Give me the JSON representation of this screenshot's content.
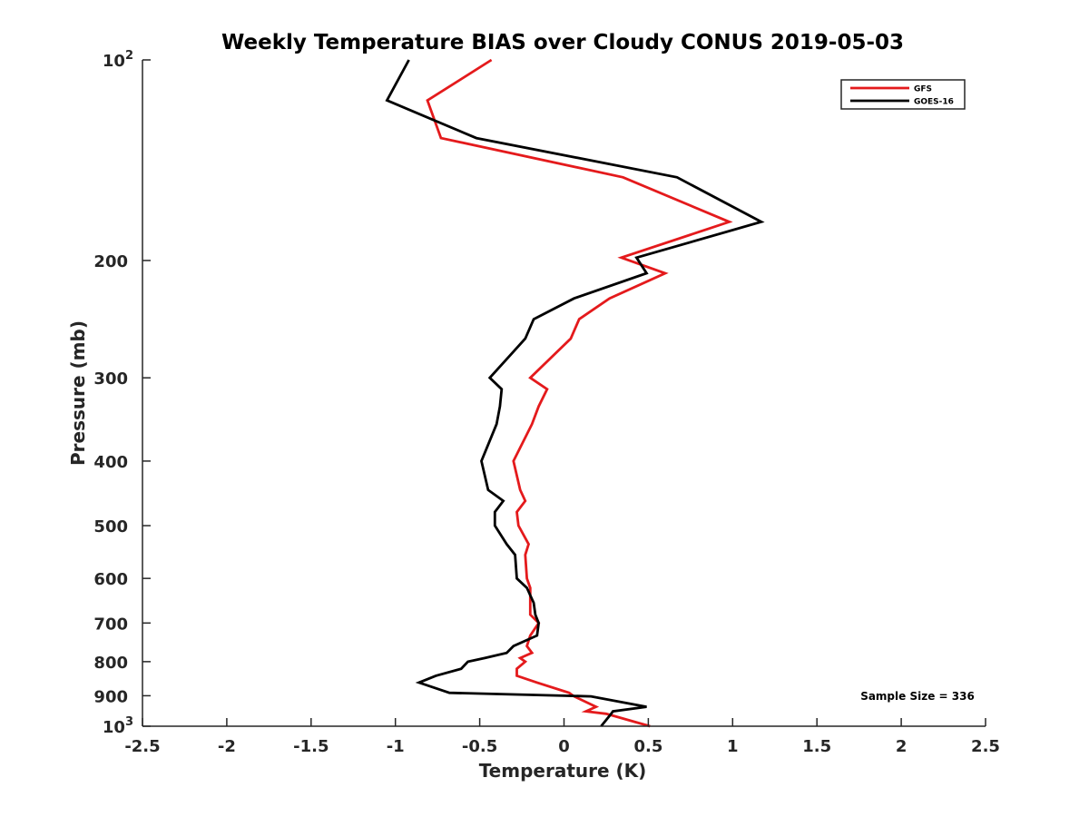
{
  "chart_data": {
    "type": "line",
    "title": "Weekly Temperature BIAS over Cloudy CONUS 2019-05-03",
    "xlabel": "Temperature (K)",
    "ylabel": "Pressure (mb)",
    "xlim": [
      -2.5,
      2.5
    ],
    "ylim": [
      1000,
      100
    ],
    "y_scale": "log",
    "y_reversed": true,
    "x_ticks": [
      "-2.5",
      "-2",
      "-1.5",
      "-1",
      "-0.5",
      "0",
      "0.5",
      "1",
      "1.5",
      "2",
      "2.5"
    ],
    "y_ticks": [
      {
        "value": 100,
        "base": "10",
        "exp": "2"
      },
      {
        "value": 200,
        "label": "200"
      },
      {
        "value": 300,
        "label": "300"
      },
      {
        "value": 400,
        "label": "400"
      },
      {
        "value": 500,
        "label": "500"
      },
      {
        "value": 600,
        "label": "600"
      },
      {
        "value": 700,
        "label": "700"
      },
      {
        "value": 800,
        "label": "800"
      },
      {
        "value": 900,
        "label": "900"
      },
      {
        "value": 1000,
        "base": "10",
        "exp": "3"
      }
    ],
    "legend_position": "top-right",
    "grid": false,
    "annotation": "Sample Size = 336",
    "series": [
      {
        "name": "GFS",
        "color": "#e41a1c",
        "x": [
          -0.43,
          -0.81,
          -0.73,
          0.35,
          0.98,
          0.34,
          0.6,
          0.27,
          0.09,
          0.04,
          -0.2,
          -0.1,
          -0.15,
          -0.19,
          -0.3,
          -0.26,
          -0.23,
          -0.28,
          -0.27,
          -0.21,
          -0.23,
          -0.22,
          -0.2,
          -0.2,
          -0.2,
          -0.15,
          -0.2,
          -0.22,
          -0.19,
          -0.26,
          -0.23,
          -0.28,
          -0.28,
          -0.16,
          0.03,
          0.06,
          0.19,
          0.13,
          0.25,
          0.51
        ],
        "y": [
          100,
          115,
          131,
          150,
          175,
          198,
          209,
          228,
          245,
          262,
          300,
          312,
          331,
          352,
          400,
          442,
          459,
          477,
          500,
          533,
          553,
          600,
          620,
          653,
          680,
          700,
          731,
          758,
          776,
          790,
          800,
          820,
          840,
          860,
          891,
          902,
          935,
          950,
          958,
          1000
        ]
      },
      {
        "name": "GOES-16",
        "color": "#000000",
        "x": [
          -0.92,
          -1.05,
          -0.52,
          0.67,
          1.17,
          0.43,
          0.49,
          0.06,
          -0.18,
          -0.23,
          -0.44,
          -0.37,
          -0.38,
          -0.4,
          -0.49,
          -0.45,
          -0.36,
          -0.41,
          -0.41,
          -0.34,
          -0.29,
          -0.28,
          -0.22,
          -0.18,
          -0.17,
          -0.15,
          -0.16,
          -0.3,
          -0.34,
          -0.47,
          -0.57,
          -0.61,
          -0.76,
          -0.86,
          -0.68,
          0.16,
          0.49,
          0.29,
          0.28,
          0.22
        ],
        "y": [
          100,
          115,
          131,
          150,
          175,
          198,
          209,
          228,
          245,
          262,
          300,
          312,
          331,
          352,
          400,
          442,
          459,
          477,
          500,
          533,
          553,
          600,
          620,
          653,
          680,
          700,
          731,
          758,
          776,
          790,
          800,
          820,
          840,
          860,
          891,
          902,
          935,
          950,
          958,
          1000
        ]
      }
    ]
  }
}
